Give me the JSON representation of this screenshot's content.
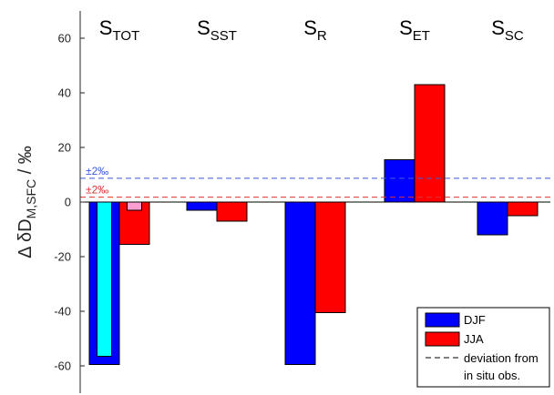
{
  "chart_data": {
    "type": "bar",
    "categories": [
      {
        "main": "S",
        "sub": "TOT"
      },
      {
        "main": "S",
        "sub": "SST"
      },
      {
        "main": "S",
        "sub": "R"
      },
      {
        "main": "S",
        "sub": "ET"
      },
      {
        "main": "S",
        "sub": "SC"
      }
    ],
    "series": [
      {
        "name": "DJF",
        "color": "#0000ff",
        "values": [
          -59.5,
          -3,
          -59.5,
          15.5,
          -12
        ]
      },
      {
        "name": "JJA",
        "color": "#ff0000",
        "values": [
          -15.5,
          -7,
          -40.5,
          43,
          -5
        ]
      }
    ],
    "inner_bars": {
      "category_index": 0,
      "DJF": {
        "value": -56.5,
        "color": "#00ffff"
      },
      "JJA": {
        "value": -3,
        "color": "#ff9ecf"
      }
    },
    "ylabel": {
      "prefix": "Δ δD",
      "sub": "M,SFC",
      "suffix": " / ‰"
    },
    "ylim": [
      -70,
      70
    ],
    "yticks": [
      -60,
      -40,
      -20,
      0,
      20,
      40,
      60
    ],
    "ytick_labels": [
      "-60",
      "-40",
      "-20",
      "0",
      "20",
      "40",
      "60"
    ],
    "reference_lines": [
      {
        "value": 8.7,
        "label": "±2‰",
        "color": "#3b5bdb"
      },
      {
        "value": 1.8,
        "label": "±2‰",
        "color": "#e03131"
      }
    ],
    "legend": {
      "position": "bottom-right",
      "entries": [
        {
          "label": "DJF",
          "kind": "patch",
          "color": "#0000ff"
        },
        {
          "label": "JJA",
          "kind": "patch",
          "color": "#ff0000"
        },
        {
          "label": "deviation from",
          "label2": "in situ obs.",
          "kind": "dashed-line",
          "color": "#000000"
        }
      ]
    },
    "grid": false
  }
}
